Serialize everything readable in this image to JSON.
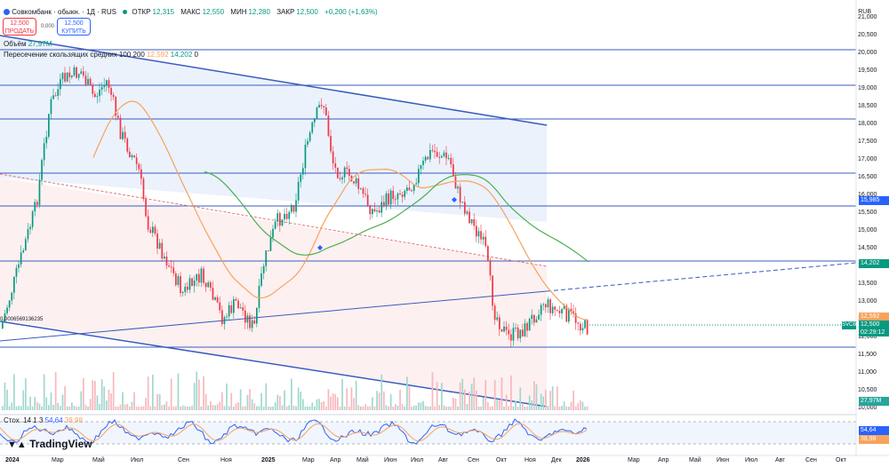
{
  "header": {
    "symbol_title": "Совкомбанк · обыкн. · 1Д · RUS",
    "open_label": "ОТКР",
    "open_value": "12,315",
    "high_label": "МАКС",
    "high_value": "12,550",
    "low_label": "МИН",
    "low_value": "12,280",
    "close_label": "ЗАКР",
    "close_value": "12,500",
    "change_value": "+0,200 (+1,63%)"
  },
  "trade": {
    "sell_price": "12,500",
    "sell_label": "ПРОДАТЬ",
    "spread": "0,000",
    "buy_price": "12,500",
    "buy_label": "КУПИТЬ"
  },
  "indicators": {
    "volume_label": "Объём",
    "volume_value": "27,97M",
    "ma_label": "Пересечение скользящих средних 100 200",
    "ma100_value": "12,592",
    "ma200_value": "14,202",
    "ma_cross_value": "0",
    "stoch_label": "Стох. 14 1 3",
    "stoch_k_value": "54,64",
    "stoch_d_value": "38,98"
  },
  "left_marker": "0,0006569136235",
  "axis": {
    "currency": "RUB",
    "y_ticks": [
      "21,000",
      "20,500",
      "20,000",
      "19,500",
      "19,000",
      "18,500",
      "18,000",
      "17,500",
      "17,000",
      "16,500",
      "16,000",
      "15,500",
      "15,000",
      "14,500",
      "14,000",
      "13,500",
      "13,000",
      "12,500",
      "12,000",
      "11,500",
      "11,000",
      "10,500",
      "10,000"
    ],
    "x_ticks": [
      "2024",
      "Мар",
      "Май",
      "Июл",
      "Сен",
      "Ноя",
      "2025",
      "Мар",
      "Апр",
      "Май",
      "Июн",
      "Июл",
      "Авг",
      "Сен",
      "Окт",
      "Ноя",
      "Дек",
      "2026",
      "Мар",
      "Апр",
      "Май",
      "Июн",
      "Июл",
      "Авг",
      "Сен",
      "Окт"
    ]
  },
  "price_tags": {
    "level_15985": "15,985",
    "ma_long": "14,202",
    "ma_short": "12,592",
    "ticker": "SVCB",
    "last_price": "12,500",
    "countdown": "02:29:12",
    "volume": "27,97M",
    "stoch_k": "54,64",
    "stoch_d": "38,98"
  },
  "colors": {
    "up": "#089981",
    "down": "#f23645",
    "trend": "#3a5bbf",
    "ma_short": "#f7a35c",
    "ma_long": "#4caf50",
    "accent": "#2962ff"
  },
  "brand": "TradingView"
}
